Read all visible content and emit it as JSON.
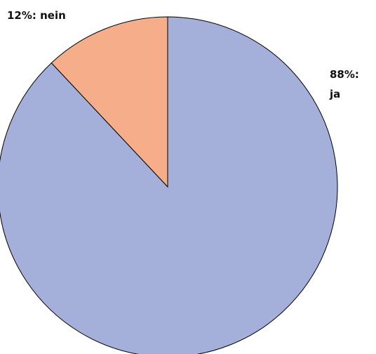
{
  "chart_data": {
    "type": "pie",
    "values": [
      88,
      12
    ],
    "value_labels": [
      "88%: ja",
      "12%: nein"
    ],
    "colors": [
      "#a4b0d9",
      "#f6ad89"
    ],
    "start_angle": 90,
    "direction": "clockwise"
  }
}
